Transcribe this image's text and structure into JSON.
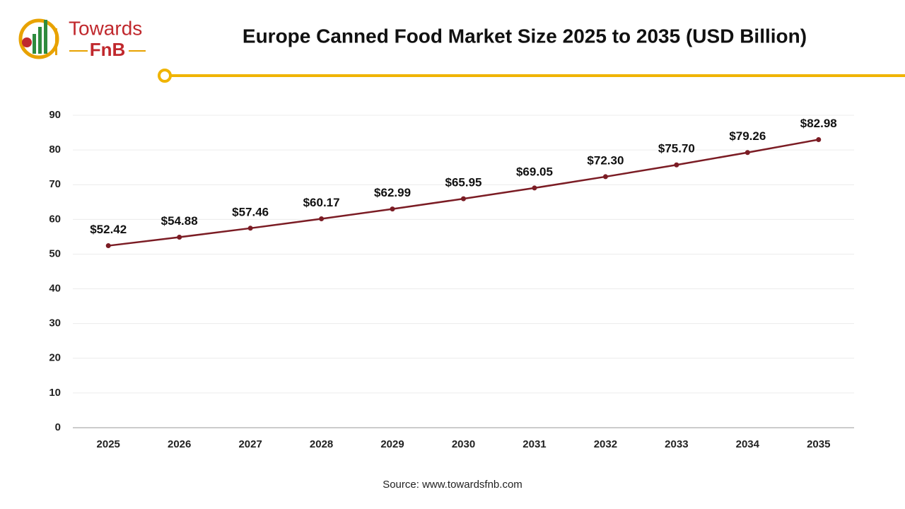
{
  "logo": {
    "line1": "Towards",
    "line2": "FnB"
  },
  "chart_data": {
    "type": "line",
    "title": "Europe Canned Food Market Size 2025 to 2035 (USD Billion)",
    "source": "Source: www.towardsfnb.com",
    "categories": [
      "2025",
      "2026",
      "2027",
      "2028",
      "2029",
      "2030",
      "2031",
      "2032",
      "2033",
      "2034",
      "2035"
    ],
    "values": [
      52.42,
      54.88,
      57.46,
      60.17,
      62.99,
      65.95,
      69.05,
      72.3,
      75.7,
      79.26,
      82.98
    ],
    "value_labels": [
      "$52.42",
      "$54.88",
      "$57.46",
      "$60.17",
      "$62.99",
      "$65.95",
      "$69.05",
      "$72.30",
      "$75.70",
      "$79.26",
      "$82.98"
    ],
    "color": "#7b1c24",
    "ylim": [
      0,
      90
    ],
    "yticks": [
      0,
      10,
      20,
      30,
      40,
      50,
      60,
      70,
      80,
      90
    ],
    "grid": true
  }
}
